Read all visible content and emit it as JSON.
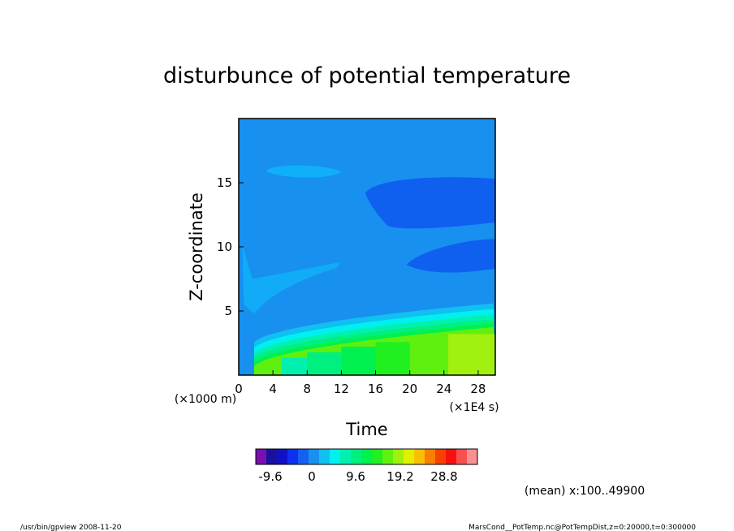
{
  "chart_data": {
    "type": "heatmap",
    "title": "disturbunce of potential temperature",
    "xlabel": "Time",
    "ylabel": "Z-coordinate",
    "x_unit": "(×1E4 s)",
    "y_unit": "(×1000 m)",
    "xlim": [
      0,
      30
    ],
    "ylim": [
      0,
      20
    ],
    "x_ticks": [
      "0",
      "4",
      "8",
      "12",
      "16",
      "20",
      "24",
      "28"
    ],
    "y_ticks": [
      "5",
      "10",
      "15"
    ],
    "colorbar": {
      "colors": [
        "#7a10b0",
        "#1a10a0",
        "#1010c8",
        "#1030f0",
        "#1460f0",
        "#1890f0",
        "#10c0f0",
        "#00f0f0",
        "#00f0b0",
        "#00f080",
        "#00f050",
        "#20f020",
        "#60f010",
        "#a0f010",
        "#e0f000",
        "#f8c000",
        "#f88000",
        "#f84000",
        "#f81010",
        "#f85050",
        "#f89090"
      ],
      "tick_labels": [
        "-9.6",
        "0",
        "9.6",
        "19.2",
        "28.8"
      ]
    },
    "fields": [
      {
        "name": "background",
        "color": "#1890f0"
      },
      {
        "name": "surface-band",
        "color": "#10c0f0"
      },
      {
        "name": "upper-lobe",
        "color": "#1060f0"
      },
      {
        "name": "lower-lobe",
        "color": "#1060f0"
      },
      {
        "name": "bubble",
        "color": "#10b0f8"
      }
    ]
  },
  "mean_note": "(mean) x:100..49900",
  "footer": {
    "left": "/usr/bin/gpview   2008-11-20",
    "right": "MarsCond__PotTemp.nc@PotTempDist,z=0:20000,t=0:300000"
  }
}
